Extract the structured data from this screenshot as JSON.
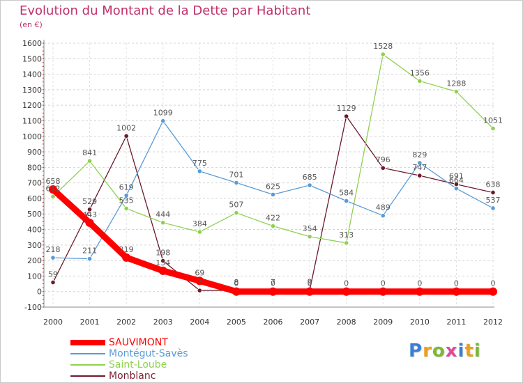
{
  "header": {
    "title": "Evolution du Montant de la Dette par Habitant",
    "subtitle": "(en €)"
  },
  "brand": {
    "text": "Proxiti",
    "letter_colors": [
      "#3a7fd5",
      "#e8a020",
      "#7ab836",
      "#e04a9a",
      "#3a7fd5",
      "#e8a020",
      "#7ab836"
    ]
  },
  "chart_data": {
    "type": "line",
    "x": [
      "2000",
      "2001",
      "2002",
      "2003",
      "2004",
      "2005",
      "2006",
      "2007",
      "2008",
      "2009",
      "2010",
      "2011",
      "2012"
    ],
    "ylim": [
      -100,
      1600
    ],
    "yticks": [
      -100,
      0,
      100,
      200,
      300,
      400,
      500,
      600,
      700,
      800,
      900,
      1000,
      1100,
      1200,
      1300,
      1400,
      1500,
      1600
    ],
    "grid": "horizontal dashed",
    "legend_position": "bottom-left",
    "series": [
      {
        "name": "SAUVIMONT",
        "color": "#ff0000",
        "values": [
          658,
          443,
          219,
          134,
          69,
          0,
          0,
          0,
          0,
          0,
          0,
          0,
          0
        ],
        "labels": [
          "658",
          "443",
          "219",
          "134",
          "69",
          "0",
          "0",
          "0",
          "0",
          "0",
          "0",
          "0",
          "0"
        ]
      },
      {
        "name": "Montégut-Savès",
        "color": "#5b9bd5",
        "values": [
          218,
          211,
          619,
          1099,
          775,
          701,
          625,
          685,
          584,
          489,
          829,
          664,
          537
        ],
        "labels": [
          "218",
          "211",
          "619",
          "1099",
          "775",
          "701",
          "625",
          "685",
          "584",
          "489",
          "829",
          "664",
          "537"
        ]
      },
      {
        "name": "Saint-Loube",
        "color": "#8fd14f",
        "values": [
          612,
          841,
          535,
          444,
          384,
          507,
          422,
          354,
          313,
          1528,
          1356,
          1288,
          1051
        ],
        "labels": [
          "612",
          "841",
          "535",
          "444",
          "384",
          "507",
          "422",
          "354",
          "313",
          "1528",
          "1356",
          "1288",
          "1051"
        ]
      },
      {
        "name": "Monblanc",
        "color": "#6b1a2a",
        "values": [
          59,
          529,
          1002,
          198,
          7,
          8,
          7,
          9,
          1129,
          796,
          747,
          691,
          638
        ],
        "labels": [
          "59",
          "529",
          "1002",
          "198",
          "7",
          "8",
          "7",
          "9",
          "1129",
          "796",
          "747",
          "691",
          "638"
        ]
      }
    ]
  }
}
